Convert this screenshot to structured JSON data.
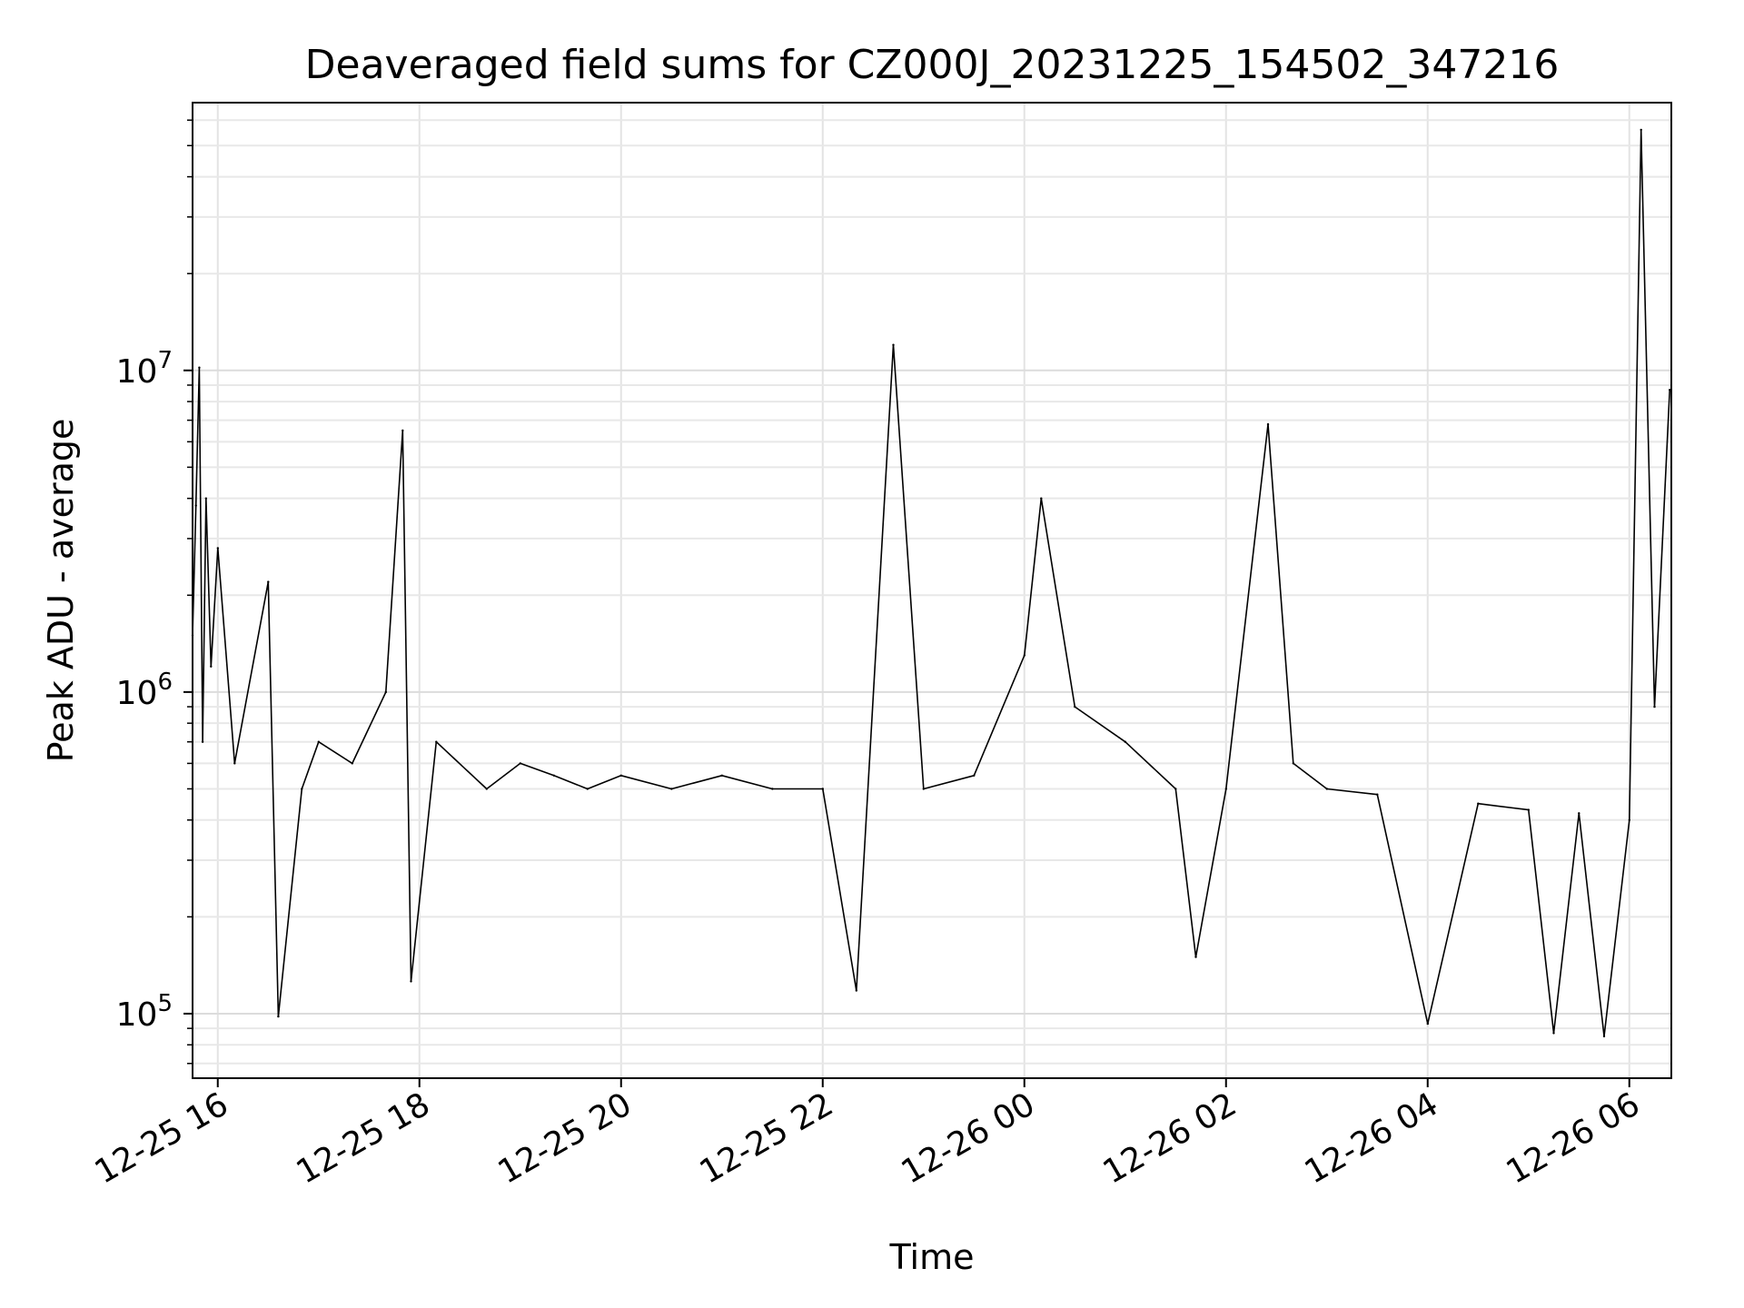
{
  "chart_data": {
    "type": "line",
    "title": "Deaveraged field sums for CZ000J_20231225_154502_347216",
    "xlabel": "Time",
    "ylabel": "Peak ADU - average",
    "yscale": "log",
    "ylim": [
      63000,
      68000000
    ],
    "xlim": [
      "2023-12-25 15:45",
      "2023-12-26 06:25"
    ],
    "grid": true,
    "x_ticks": [
      {
        "value": "2023-12-25 16:00",
        "label": "12-25 16"
      },
      {
        "value": "2023-12-25 18:00",
        "label": "12-25 18"
      },
      {
        "value": "2023-12-25 20:00",
        "label": "12-25 20"
      },
      {
        "value": "2023-12-25 22:00",
        "label": "12-25 22"
      },
      {
        "value": "2023-12-26 00:00",
        "label": "12-26 00"
      },
      {
        "value": "2023-12-26 02:00",
        "label": "12-26 02"
      },
      {
        "value": "2023-12-26 04:00",
        "label": "12-26 04"
      },
      {
        "value": "2023-12-26 06:00",
        "label": "12-26 06"
      }
    ],
    "y_ticks": [
      {
        "value": 100000,
        "base": "10",
        "exp": "5"
      },
      {
        "value": 1000000,
        "base": "10",
        "exp": "6"
      },
      {
        "value": 10000000,
        "base": "10",
        "exp": "7"
      }
    ],
    "series": [
      {
        "color": "#000000",
        "points": [
          [
            "2023-12-25 15:45",
            1500000
          ],
          [
            "2023-12-25 15:47",
            3800000
          ],
          [
            "2023-12-25 15:49",
            10200000
          ],
          [
            "2023-12-25 15:51",
            700000
          ],
          [
            "2023-12-25 15:53",
            4000000
          ],
          [
            "2023-12-25 15:56",
            1200000
          ],
          [
            "2023-12-25 16:00",
            2800000
          ],
          [
            "2023-12-25 16:10",
            600000
          ],
          [
            "2023-12-25 16:30",
            2200000
          ],
          [
            "2023-12-25 16:36",
            98000
          ],
          [
            "2023-12-25 16:50",
            500000
          ],
          [
            "2023-12-25 17:00",
            700000
          ],
          [
            "2023-12-25 17:20",
            600000
          ],
          [
            "2023-12-25 17:40",
            1000000
          ],
          [
            "2023-12-25 17:50",
            6500000
          ],
          [
            "2023-12-25 17:55",
            126000
          ],
          [
            "2023-12-25 18:10",
            700000
          ],
          [
            "2023-12-25 18:40",
            500000
          ],
          [
            "2023-12-25 19:00",
            600000
          ],
          [
            "2023-12-25 19:20",
            550000
          ],
          [
            "2023-12-25 19:40",
            500000
          ],
          [
            "2023-12-25 20:00",
            550000
          ],
          [
            "2023-12-25 20:30",
            500000
          ],
          [
            "2023-12-25 21:00",
            550000
          ],
          [
            "2023-12-25 21:30",
            500000
          ],
          [
            "2023-12-25 22:00",
            500000
          ],
          [
            "2023-12-25 22:20",
            118000
          ],
          [
            "2023-12-25 22:42",
            12000000
          ],
          [
            "2023-12-25 23:00",
            500000
          ],
          [
            "2023-12-25 23:30",
            550000
          ],
          [
            "2023-12-26 00:00",
            1300000
          ],
          [
            "2023-12-26 00:10",
            4000000
          ],
          [
            "2023-12-26 00:30",
            900000
          ],
          [
            "2023-12-26 01:00",
            700000
          ],
          [
            "2023-12-26 01:30",
            500000
          ],
          [
            "2023-12-26 01:42",
            150000
          ],
          [
            "2023-12-26 02:00",
            500000
          ],
          [
            "2023-12-26 02:25",
            6800000
          ],
          [
            "2023-12-26 02:40",
            600000
          ],
          [
            "2023-12-26 03:00",
            500000
          ],
          [
            "2023-12-26 03:30",
            480000
          ],
          [
            "2023-12-26 04:00",
            93000
          ],
          [
            "2023-12-26 04:30",
            450000
          ],
          [
            "2023-12-26 05:00",
            430000
          ],
          [
            "2023-12-26 05:15",
            87000
          ],
          [
            "2023-12-26 05:30",
            420000
          ],
          [
            "2023-12-26 05:45",
            85000
          ],
          [
            "2023-12-26 06:00",
            400000
          ],
          [
            "2023-12-26 06:07",
            56000000
          ],
          [
            "2023-12-26 06:15",
            900000
          ],
          [
            "2023-12-26 06:24",
            8700000
          ]
        ]
      }
    ]
  }
}
